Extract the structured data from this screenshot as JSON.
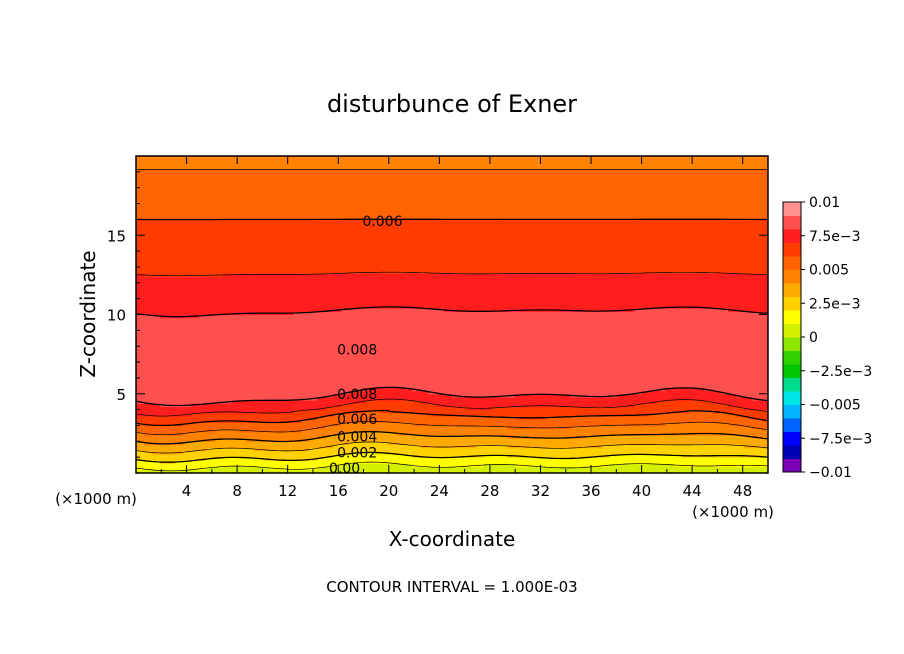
{
  "chart_data": {
    "type": "heatmap",
    "subtype": "filled-contour",
    "title": "disturbunce of Exner",
    "xlabel": "X-coordinate",
    "ylabel": "Z-coordinate",
    "x_unit": "(×1000 m)",
    "x_unit_left": "(×1000 m)",
    "footer": "CONTOUR INTERVAL = 1.000E-03",
    "xlim": [
      0,
      50
    ],
    "ylim": [
      0,
      20
    ],
    "x_ticks": [
      4,
      8,
      12,
      16,
      20,
      24,
      28,
      32,
      36,
      40,
      44,
      48
    ],
    "x_tick_labels": [
      "4",
      "8",
      "12",
      "16",
      "20",
      "24",
      "28",
      "32",
      "36",
      "40",
      "44",
      "48"
    ],
    "y_ticks": [
      5,
      10,
      15
    ],
    "y_tick_labels": [
      "5",
      "10",
      "15"
    ],
    "colorbar": {
      "min": -0.01,
      "max": 0.01,
      "tick_values": [
        0.01,
        0.0075,
        0.005,
        0.0025,
        0,
        -0.0025,
        -0.005,
        -0.0075,
        -0.01
      ],
      "tick_labels": [
        "0.01",
        "7.5e−3",
        "0.005",
        "2.5e−3",
        "0",
        "−2.5e−3",
        "−0.005",
        "−7.5e−3",
        "−0.01"
      ],
      "colors": [
        "#7a00b4",
        "#0000b4",
        "#0000ff",
        "#0064ff",
        "#00b4ff",
        "#00e6e6",
        "#00dc8c",
        "#00c800",
        "#32d200",
        "#8ce600",
        "#d2f000",
        "#ffff00",
        "#ffd200",
        "#ffaa00",
        "#ff8200",
        "#ff6400",
        "#ff3c00",
        "#ff1e1e",
        "#ff5050",
        "#ff9090"
      ]
    },
    "contour_interval": 0.001,
    "profile": {
      "z": [
        0,
        0.5,
        1,
        1.5,
        2,
        2.5,
        3,
        3.5,
        4,
        4.5,
        5,
        7,
        9,
        10,
        12,
        14,
        16,
        18,
        20
      ],
      "value": [
        0.0,
        0.0012,
        0.002,
        0.0028,
        0.0036,
        0.0044,
        0.0052,
        0.006,
        0.0068,
        0.0076,
        0.0082,
        0.0086,
        0.0084,
        0.0081,
        0.0072,
        0.0065,
        0.006,
        0.0054,
        0.0047
      ]
    },
    "contour_labels": [
      {
        "text": "0.006",
        "x": 19.5,
        "z": 15.9
      },
      {
        "text": "0.008",
        "x": 17.5,
        "z": 7.8
      },
      {
        "text": "0.008",
        "x": 17.5,
        "z": 5.0
      },
      {
        "text": "0.006",
        "x": 17.5,
        "z": 3.4
      },
      {
        "text": "0.004",
        "x": 17.5,
        "z": 2.3
      },
      {
        "text": "0.002",
        "x": 17.5,
        "z": 1.3
      },
      {
        "text": "0.00",
        "x": 16.5,
        "z": 0.3
      }
    ]
  }
}
